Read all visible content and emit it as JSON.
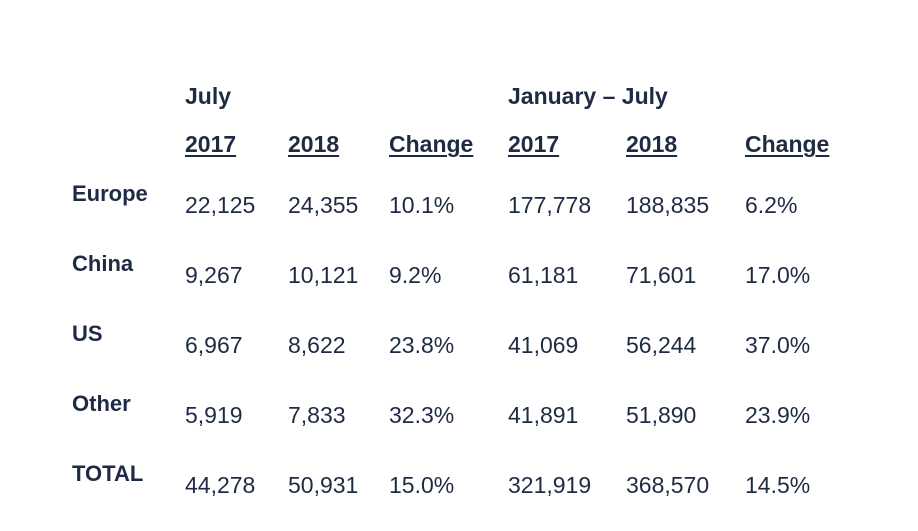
{
  "table": {
    "groups": [
      "July",
      "January – July"
    ],
    "columns": [
      "2017",
      "2018",
      "Change",
      "2017",
      "2018",
      "Change"
    ],
    "rows": [
      {
        "label": "Europe",
        "values": [
          "22,125",
          "24,355",
          "10.1%",
          "177,778",
          "188,835",
          "6.2%"
        ]
      },
      {
        "label": "China",
        "values": [
          "9,267",
          "10,121",
          "9.2%",
          "61,181",
          "71,601",
          "17.0%"
        ]
      },
      {
        "label": "US",
        "values": [
          "6,967",
          "8,622",
          "23.8%",
          "41,069",
          "56,244",
          "37.0%"
        ]
      },
      {
        "label": "Other",
        "values": [
          "5,919",
          "7,833",
          "32.3%",
          "41,891",
          "51,890",
          "23.9%"
        ]
      },
      {
        "label": "TOTAL",
        "values": [
          "44,278",
          "50,931",
          "15.0%",
          "321,919",
          "368,570",
          "14.5%"
        ]
      }
    ]
  },
  "colors": {
    "text": "#1f2a44",
    "background": "#ffffff"
  }
}
